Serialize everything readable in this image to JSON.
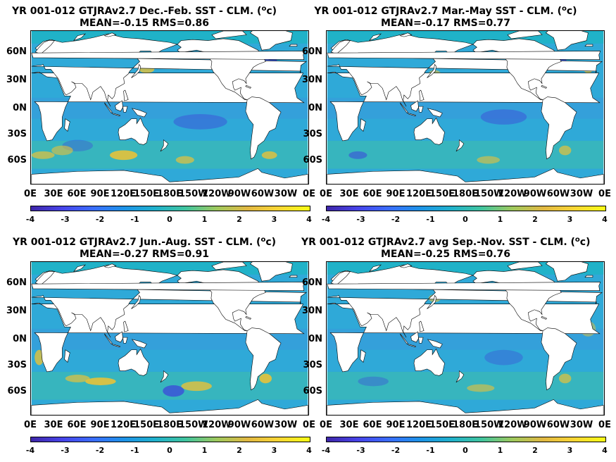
{
  "panels": [
    {
      "line1": "YR 001-012 GTJRAv2.7  Dec.-Feb. SST - CLM. (",
      "sup": "o",
      "unit": "c)",
      "line2": "MEAN=-0.15   RMS=0.86"
    },
    {
      "line1": "YR 001-012 GTJRAv2.7 Mar.-May SST - CLM. (",
      "sup": "o",
      "unit": "c)",
      "line2": "MEAN=-0.17   RMS=0.77"
    },
    {
      "line1": "YR 001-012 GTJRAv2.7 Jun.-Aug. SST - CLM. (",
      "sup": "o",
      "unit": "c)",
      "line2": "MEAN=-0.27   RMS=0.91"
    },
    {
      "line1": "YR 001-012 GTJRAv2.7 avg Sep.-Nov. SST - CLM. (",
      "sup": "o",
      "unit": "c)",
      "line2": "MEAN=-0.25   RMS=0.76"
    }
  ],
  "lat_labels": [
    "60N",
    "30N",
    "0N",
    "30S",
    "60S"
  ],
  "lat_labels_bottom": [
    "60N",
    "30N",
    "0N",
    "30S",
    "60S"
  ],
  "lon_labels": [
    "0E",
    "30E",
    "60E",
    "90E",
    "120E",
    "150E",
    "180E",
    "150W",
    "120W",
    "90W",
    "60W",
    "30W",
    "0E"
  ],
  "colorbar": {
    "ticks": [
      "-4",
      "-3",
      "-2",
      "-1",
      "0",
      "1",
      "2",
      "3",
      "4"
    ],
    "colors": [
      "#3e26a8",
      "#4743e8",
      "#3a6cfc",
      "#1d92e7",
      "#1fb0cc",
      "#40c49e",
      "#9ec85d",
      "#e1b842",
      "#f9d634",
      "#f9fb15"
    ]
  },
  "map_colors": {
    "ocean": "#2fa9d8",
    "land": "#ffffff",
    "coast": "#000000",
    "warm": "#e6c23a",
    "cool": "#3b4fd8",
    "ice": "#1fb3c6"
  }
}
